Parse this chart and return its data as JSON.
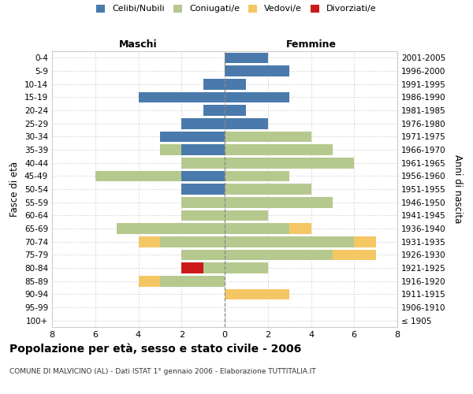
{
  "age_groups": [
    "100+",
    "95-99",
    "90-94",
    "85-89",
    "80-84",
    "75-79",
    "70-74",
    "65-69",
    "60-64",
    "55-59",
    "50-54",
    "45-49",
    "40-44",
    "35-39",
    "30-34",
    "25-29",
    "20-24",
    "15-19",
    "10-14",
    "5-9",
    "0-4"
  ],
  "birth_years": [
    "≤ 1905",
    "1906-1910",
    "1911-1915",
    "1916-1920",
    "1921-1925",
    "1926-1930",
    "1931-1935",
    "1936-1940",
    "1941-1945",
    "1946-1950",
    "1951-1955",
    "1956-1960",
    "1961-1965",
    "1966-1970",
    "1971-1975",
    "1976-1980",
    "1981-1985",
    "1986-1990",
    "1991-1995",
    "1996-2000",
    "2001-2005"
  ],
  "maschi": {
    "celibi": [
      0,
      0,
      0,
      0,
      0,
      0,
      0,
      0,
      0,
      0,
      2,
      2,
      0,
      2,
      3,
      2,
      1,
      4,
      1,
      0,
      0
    ],
    "coniugati": [
      0,
      0,
      0,
      3,
      1,
      2,
      3,
      5,
      2,
      2,
      0,
      4,
      2,
      1,
      0,
      0,
      0,
      0,
      0,
      0,
      0
    ],
    "vedovi": [
      0,
      0,
      0,
      1,
      0,
      0,
      1,
      0,
      0,
      0,
      0,
      0,
      0,
      0,
      0,
      0,
      0,
      0,
      0,
      0,
      0
    ],
    "divorziati": [
      0,
      0,
      0,
      0,
      1,
      0,
      0,
      0,
      0,
      0,
      0,
      0,
      0,
      0,
      0,
      0,
      0,
      0,
      0,
      0,
      0
    ]
  },
  "femmine": {
    "nubili": [
      0,
      0,
      0,
      0,
      0,
      0,
      0,
      0,
      0,
      0,
      0,
      0,
      0,
      0,
      0,
      2,
      1,
      3,
      1,
      3,
      2
    ],
    "coniugate": [
      0,
      0,
      0,
      0,
      2,
      5,
      6,
      3,
      2,
      5,
      4,
      3,
      6,
      5,
      4,
      0,
      0,
      0,
      0,
      0,
      0
    ],
    "vedove": [
      0,
      0,
      3,
      0,
      0,
      2,
      1,
      1,
      0,
      0,
      0,
      0,
      0,
      0,
      0,
      0,
      0,
      0,
      0,
      0,
      0
    ],
    "divorziate": [
      0,
      0,
      0,
      0,
      0,
      0,
      0,
      0,
      0,
      0,
      0,
      0,
      0,
      0,
      0,
      0,
      0,
      0,
      0,
      0,
      0
    ]
  },
  "colors": {
    "celibi_nubili": "#4a7aab",
    "coniugati": "#b5c98e",
    "vedovi": "#f5c764",
    "divorziati": "#cc1a1a"
  },
  "xlim": 8,
  "title": "Popolazione per età, sesso e stato civile - 2006",
  "subtitle": "COMUNE DI MALVICINO (AL) - Dati ISTAT 1° gennaio 2006 - Elaborazione TUTTITALIA.IT",
  "ylabel_left": "Fasce di età",
  "ylabel_right": "Anni di nascita",
  "legend_labels": [
    "Celibi/Nubili",
    "Coniugati/e",
    "Vedovi/e",
    "Divorziati/e"
  ],
  "maschi_label": "Maschi",
  "femmine_label": "Femmine",
  "background_color": "#ffffff",
  "grid_color": "#cccccc"
}
